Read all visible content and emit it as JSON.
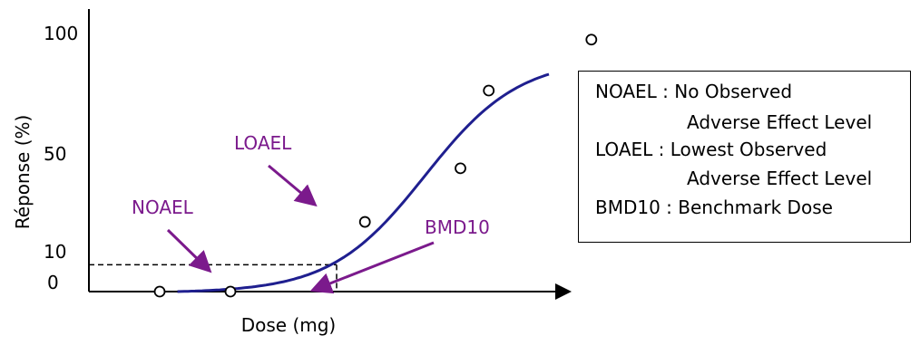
{
  "chart_data": {
    "type": "scatter",
    "xlabel": "Dose (mg)",
    "ylabel": "Réponse (%)",
    "yticks": [
      "0",
      "10",
      "50",
      "100"
    ],
    "ylim": [
      0,
      100
    ],
    "points": [
      {
        "x": 1.0,
        "y": 0
      },
      {
        "x": 2.0,
        "y": 0
      },
      {
        "x": 3.9,
        "y": 26
      },
      {
        "x": 5.25,
        "y": 46
      },
      {
        "x": 5.65,
        "y": 75
      },
      {
        "x": 7.1,
        "y": 94
      }
    ],
    "curve": {
      "type": "sigmoid",
      "max": 87,
      "midpoint": 4.75,
      "steepness": 1.5
    },
    "threshold_line": {
      "y": 10,
      "x": 3.5
    },
    "annotations": [
      {
        "label": "NOAEL",
        "x": 2.0,
        "y": 10
      },
      {
        "label": "LOAEL",
        "x": 3.9,
        "y": 26
      },
      {
        "label": "BMD10",
        "x": 3.5,
        "y": 0
      }
    ],
    "legend": [
      "NOAEL : No Observed",
      "Adverse Effect Level",
      "LOAEL : Lowest Observed",
      "Adverse Effect Level",
      "BMD10 : Benchmark Dose"
    ],
    "colors": {
      "curve": "#1f1f8f",
      "annotation": "#7b1a8c",
      "axis": "#000000"
    }
  }
}
